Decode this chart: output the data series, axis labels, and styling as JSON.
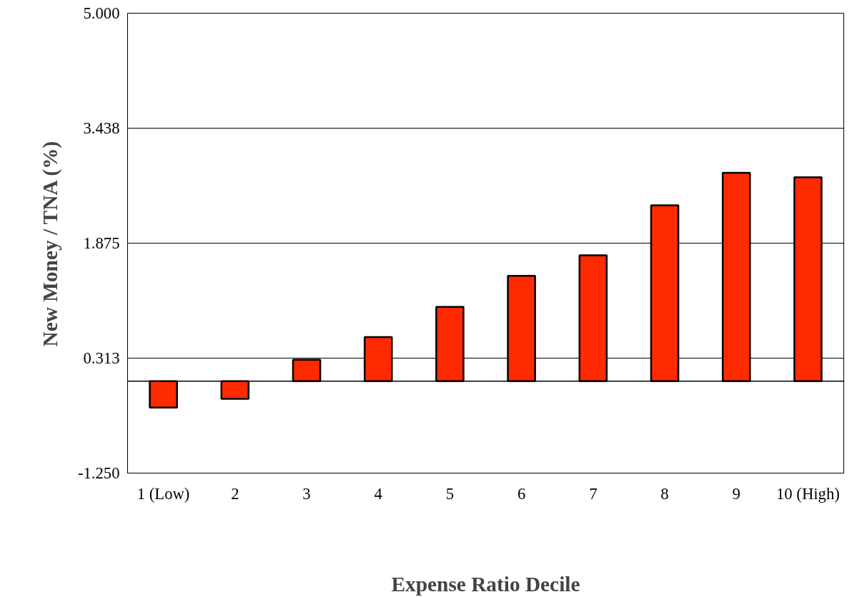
{
  "chart_data": {
    "type": "bar",
    "xlabel": "Expense Ratio Decile",
    "ylabel": "New Money / TNA (%)",
    "categories": [
      "1 (Low)",
      "2",
      "3",
      "4",
      "5",
      "6",
      "7",
      "8",
      "9",
      "10 (High)"
    ],
    "series": [
      {
        "color": "#ff2a00",
        "values": [
          -0.36,
          -0.24,
          0.29,
          0.6,
          1.01,
          1.43,
          1.71,
          2.39,
          2.83,
          2.77
        ]
      }
    ],
    "ylim": [
      -1.25,
      5.0
    ],
    "yticks": [
      {
        "value": -1.25,
        "label": "-1.250"
      },
      {
        "value": 0.313,
        "label": "0.313"
      },
      {
        "value": 1.875,
        "label": "1.875"
      },
      {
        "value": 3.438,
        "label": "3.438"
      },
      {
        "value": 5.0,
        "label": "5.000"
      }
    ],
    "grid": "y",
    "ref_lines": [
      {
        "axis": "y",
        "value": 0
      }
    ]
  }
}
